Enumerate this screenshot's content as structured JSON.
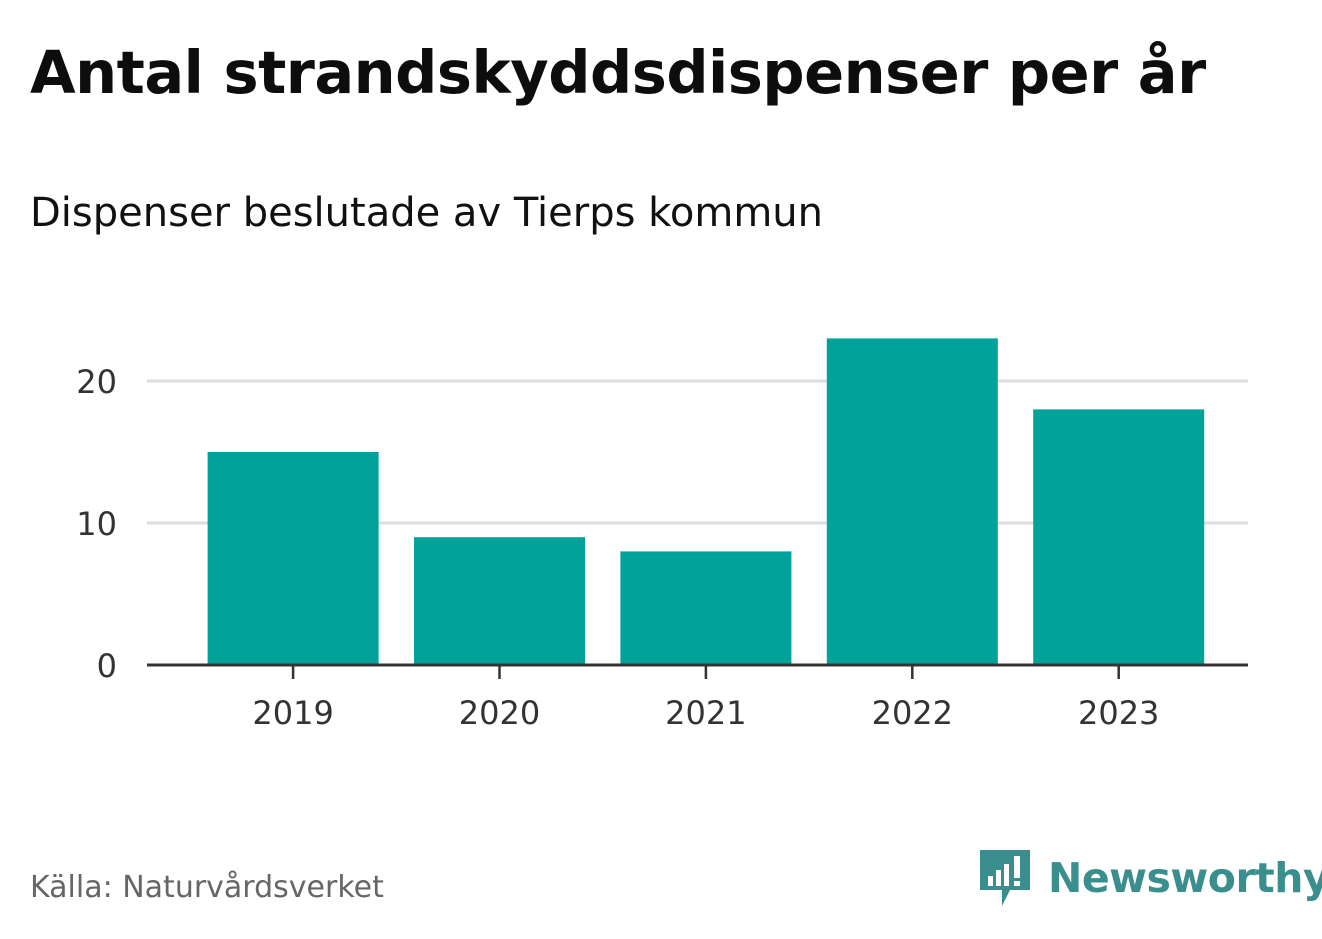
{
  "chart_data": {
    "type": "bar",
    "title": "Antal strandskyddsdispenser per år",
    "subtitle": "Dispenser beslutade av Tierps kommun",
    "categories": [
      "2019",
      "2020",
      "2021",
      "2022",
      "2023"
    ],
    "values": [
      15,
      9,
      8,
      23,
      18
    ],
    "yticks": [
      "0",
      "10",
      "20"
    ],
    "ylim": [
      0,
      24
    ],
    "xlabel": "",
    "ylabel": "",
    "grid": true,
    "bar_color": "#00a29a"
  },
  "source": "Källa: Naturvårdsverket",
  "brand": {
    "name": "Newsworthy",
    "icon": "newsworthy-logo-icon",
    "color": "#3a8f8e"
  }
}
